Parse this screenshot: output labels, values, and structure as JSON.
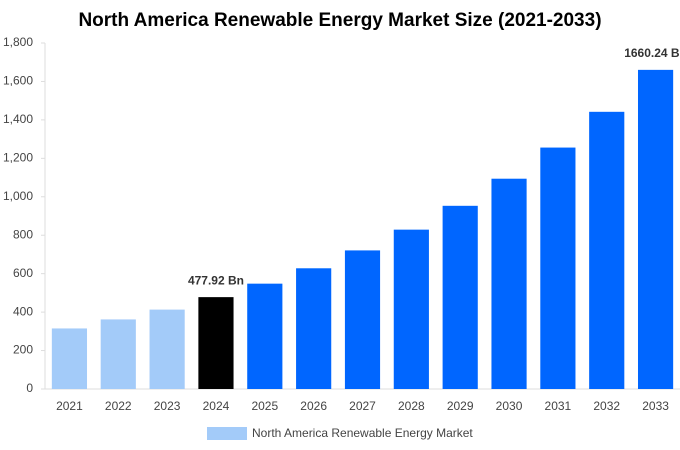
{
  "chart_data": {
    "type": "bar",
    "title": "North America Renewable Energy Market Size (2021-2033)",
    "categories": [
      "2021",
      "2022",
      "2023",
      "2024",
      "2025",
      "2026",
      "2027",
      "2028",
      "2029",
      "2030",
      "2031",
      "2032",
      "2033"
    ],
    "series": [
      {
        "name": "North America Renewable Energy Market",
        "color": "#a3cbf9",
        "values": [
          315,
          362,
          413,
          477.92,
          548,
          628,
          721,
          829,
          953,
          1094,
          1256,
          1442,
          1660.24
        ],
        "value_labels": [
          null,
          null,
          null,
          "477.92 Bn",
          null,
          null,
          null,
          null,
          null,
          null,
          null,
          null,
          "1660.24 Bn"
        ],
        "colors": [
          "#a3cbf9",
          "#a3cbf9",
          "#a3cbf9",
          "#000000",
          "#0066ff",
          "#0066ff",
          "#0066ff",
          "#0066ff",
          "#0066ff",
          "#0066ff",
          "#0066ff",
          "#0066ff",
          "#0066ff"
        ]
      }
    ],
    "ylim": [
      0,
      1800
    ],
    "yticks": [
      0,
      200,
      400,
      600,
      800,
      {
        "value": 1000,
        "label": "1,000"
      },
      {
        "value": 1200,
        "label": "1,200"
      },
      {
        "value": 1400,
        "label": "1,400"
      },
      {
        "value": 1600,
        "label": "1,600"
      },
      {
        "value": 1800,
        "label": "1,800"
      }
    ],
    "grid": false
  }
}
